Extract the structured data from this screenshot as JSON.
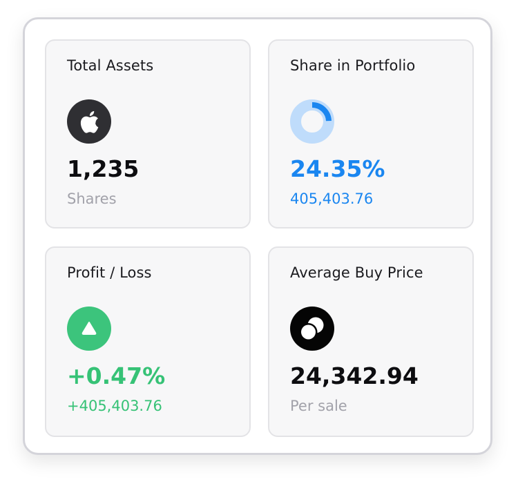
{
  "cards": [
    {
      "title": "Total Assets",
      "icon": "apple-icon",
      "value": "1,235",
      "subtext": "Shares"
    },
    {
      "title": "Share in Portfolio",
      "icon": "donut-progress-icon",
      "value": "24.35%",
      "subtext": "405,403.76",
      "progress_percent": 24.35
    },
    {
      "title": "Profit / Loss",
      "icon": "triangle-up-icon",
      "value": "+0.47%",
      "subtext": "+405,403.76"
    },
    {
      "title": "Average Buy Price",
      "icon": "coins-icon",
      "value": "24,342.94",
      "subtext": "Per sale"
    }
  ],
  "colors": {
    "blue": "#1a86f0",
    "blue_light": "#bfdcfb",
    "green": "#36c276",
    "dark": "#2f2f33",
    "muted": "#a2a2aa"
  }
}
